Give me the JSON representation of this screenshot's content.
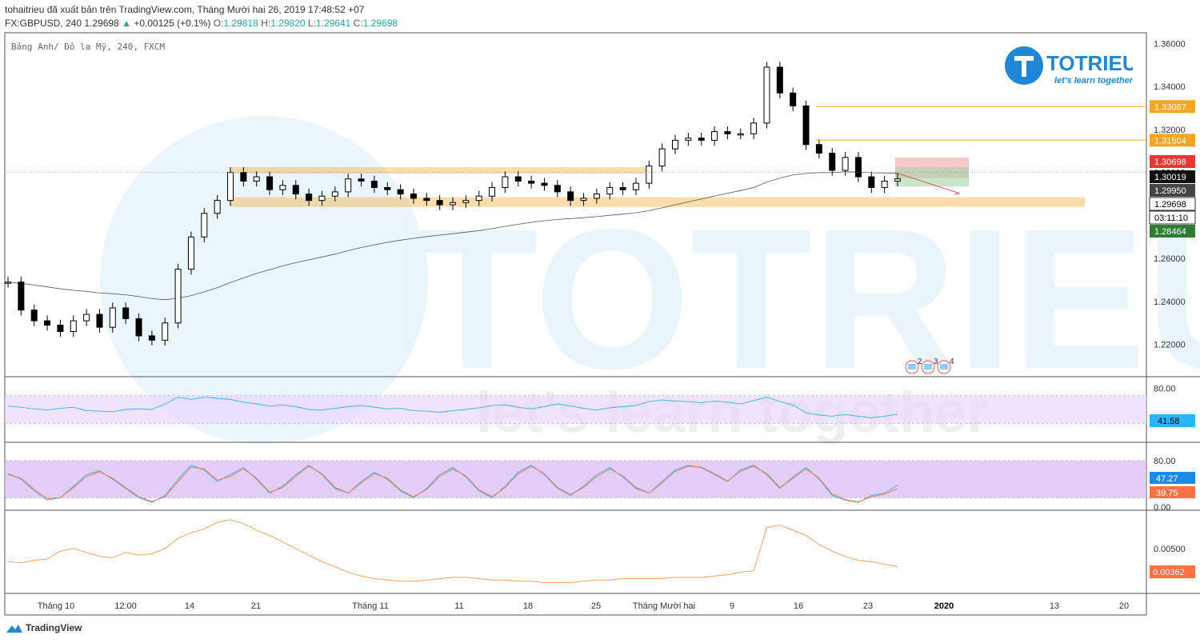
{
  "header": {
    "line1": "tohaitrieu đã xuất bản trên TradingView.com, Tháng Mười hai 26, 2019 17:48:52 +07",
    "symbol": "FX:GBPUSD, 240",
    "last": "1.29698",
    "change": "+0.00125 (+0.1%)",
    "o_label": "O:",
    "o": "1.29818",
    "h_label": "H:",
    "h": "1.29820",
    "l_label": "L:",
    "l": "1.29641",
    "c_label": "C:",
    "c": "1.29698"
  },
  "pane_title": "Bảng Anh/ Đô la Mỹ, 240, FXCM",
  "logo": {
    "brand": "TOTRIEU",
    "tagline": "let's learn together"
  },
  "watermark": {
    "brand": "TOTRIEU",
    "tagline": "let's learn together"
  },
  "footer": {
    "brand": "TradingView"
  },
  "colors": {
    "up": "#26a69a",
    "sr_zone": "#f5a623",
    "rsi_band": "#ead7fb",
    "stoch_band": "#d9b8f5",
    "ind3_line": "#f4a460",
    "ma_line": "#555555"
  },
  "chart_data": [
    {
      "type": "candlestick",
      "title": "Bảng Anh/ Đô la Mỹ, 240, FXCM",
      "x_ticks": [
        "Tháng 10",
        "12:00",
        "14",
        "21",
        "Tháng 11",
        "11",
        "18",
        "25",
        "Tháng Mười hai",
        "9",
        "16",
        "23",
        "2020",
        "13",
        "20"
      ],
      "y_ticks": [
        "1.36000",
        "1.34000",
        "1.32000",
        "1.30000",
        "1.28000",
        "1.26000",
        "1.24000",
        "1.22000"
      ],
      "ylim": [
        1.205,
        1.365
      ],
      "series": [
        {
          "name": "GBPUSD close",
          "values": [
            1.249,
            1.236,
            1.231,
            1.229,
            1.226,
            1.231,
            1.234,
            1.228,
            1.237,
            1.232,
            1.224,
            1.222,
            1.23,
            1.255,
            1.27,
            1.281,
            1.287,
            1.3,
            1.296,
            1.298,
            1.292,
            1.294,
            1.29,
            1.287,
            1.289,
            1.291,
            1.297,
            1.296,
            1.293,
            1.292,
            1.29,
            1.288,
            1.287,
            1.285,
            1.286,
            1.287,
            1.289,
            1.293,
            1.298,
            1.296,
            1.295,
            1.294,
            1.291,
            1.287,
            1.288,
            1.29,
            1.293,
            1.292,
            1.295,
            1.303,
            1.311,
            1.315,
            1.316,
            1.315,
            1.319,
            1.318,
            1.318,
            1.323,
            1.349,
            1.337,
            1.331,
            1.313,
            1.309,
            1.301,
            1.307,
            1.298,
            1.293,
            1.296,
            1.297
          ]
        }
      ],
      "price_labels": [
        {
          "value": "1.33067",
          "kind": "level"
        },
        {
          "value": "1.31504",
          "kind": "level"
        },
        {
          "value": "1.30698",
          "kind": "stop"
        },
        {
          "value": "1.30019",
          "kind": "ma"
        },
        {
          "value": "1.29950",
          "kind": "entry"
        },
        {
          "value": "1.29698",
          "kind": "last"
        },
        {
          "value": "03:11:10",
          "kind": "countdown"
        },
        {
          "value": "1.28464",
          "kind": "target"
        }
      ],
      "zones": [
        {
          "name": "resistance",
          "from": 1.2995,
          "to": 1.3025
        },
        {
          "name": "support",
          "from": 1.284,
          "to": 1.2885
        }
      ],
      "event_badges": [
        "2",
        "3",
        "4"
      ]
    },
    {
      "type": "line",
      "title": "",
      "y_ticks": [
        "80.00"
      ],
      "ylim": [
        0,
        100
      ],
      "last_value": "41.58",
      "series": [
        {
          "values": [
            56,
            54,
            51,
            49,
            52,
            54,
            48,
            47,
            46,
            50,
            51,
            50,
            60,
            72,
            68,
            72,
            70,
            68,
            63,
            60,
            56,
            58,
            55,
            50,
            49,
            52,
            55,
            57,
            54,
            51,
            52,
            48,
            47,
            45,
            48,
            50,
            53,
            57,
            58,
            54,
            51,
            55,
            60,
            56,
            52,
            49,
            53,
            55,
            57,
            64,
            67,
            65,
            64,
            62,
            65,
            63,
            60,
            66,
            72,
            64,
            58,
            44,
            40,
            38,
            41,
            38,
            35,
            38,
            41.58
          ]
        }
      ]
    },
    {
      "type": "line",
      "title": "",
      "y_ticks": [
        "80.00",
        "0.00"
      ],
      "ylim": [
        0,
        100
      ],
      "values_shown": [
        "47.27",
        "39.75"
      ],
      "series": [
        {
          "values": [
            72,
            60,
            35,
            15,
            20,
            45,
            70,
            78,
            60,
            40,
            20,
            10,
            25,
            60,
            90,
            80,
            55,
            70,
            85,
            60,
            30,
            45,
            70,
            90,
            70,
            40,
            30,
            55,
            75,
            60,
            35,
            20,
            40,
            70,
            85,
            65,
            35,
            20,
            45,
            75,
            90,
            70,
            40,
            25,
            45,
            70,
            85,
            65,
            40,
            30,
            55,
            80,
            90,
            85,
            70,
            55,
            80,
            90,
            70,
            40,
            65,
            85,
            60,
            25,
            15,
            10,
            25,
            30,
            47.27
          ]
        },
        {
          "values": [
            70,
            62,
            38,
            18,
            20,
            42,
            66,
            76,
            62,
            42,
            22,
            12,
            22,
            55,
            86,
            82,
            58,
            66,
            82,
            62,
            32,
            42,
            66,
            88,
            72,
            42,
            30,
            52,
            72,
            62,
            37,
            22,
            38,
            66,
            82,
            67,
            37,
            22,
            42,
            72,
            88,
            72,
            42,
            27,
            42,
            66,
            82,
            67,
            42,
            30,
            52,
            77,
            88,
            86,
            72,
            56,
            77,
            88,
            72,
            42,
            62,
            82,
            62,
            28,
            16,
            11,
            22,
            28,
            39.75
          ]
        }
      ]
    },
    {
      "type": "line",
      "title": "",
      "y_ticks": [
        "0.00500"
      ],
      "last_value": "0.00362",
      "series": [
        {
          "values": [
            0.004,
            0.0039,
            0.0041,
            0.0042,
            0.0048,
            0.005,
            0.0047,
            0.0044,
            0.0043,
            0.0047,
            0.0045,
            0.0046,
            0.005,
            0.0058,
            0.0062,
            0.0065,
            0.007,
            0.0072,
            0.0069,
            0.0064,
            0.006,
            0.0055,
            0.005,
            0.0045,
            0.004,
            0.0036,
            0.0032,
            0.0029,
            0.0027,
            0.0026,
            0.0025,
            0.0025,
            0.0026,
            0.0027,
            0.0028,
            0.0028,
            0.0027,
            0.0026,
            0.0026,
            0.0025,
            0.0025,
            0.0024,
            0.0024,
            0.0024,
            0.0025,
            0.0026,
            0.0026,
            0.0027,
            0.0027,
            0.0027,
            0.0027,
            0.0028,
            0.0028,
            0.0028,
            0.0029,
            0.003,
            0.0032,
            0.0033,
            0.0066,
            0.0068,
            0.0064,
            0.006,
            0.0053,
            0.0048,
            0.0044,
            0.0041,
            0.004,
            0.0038,
            0.00362
          ]
        }
      ]
    }
  ]
}
